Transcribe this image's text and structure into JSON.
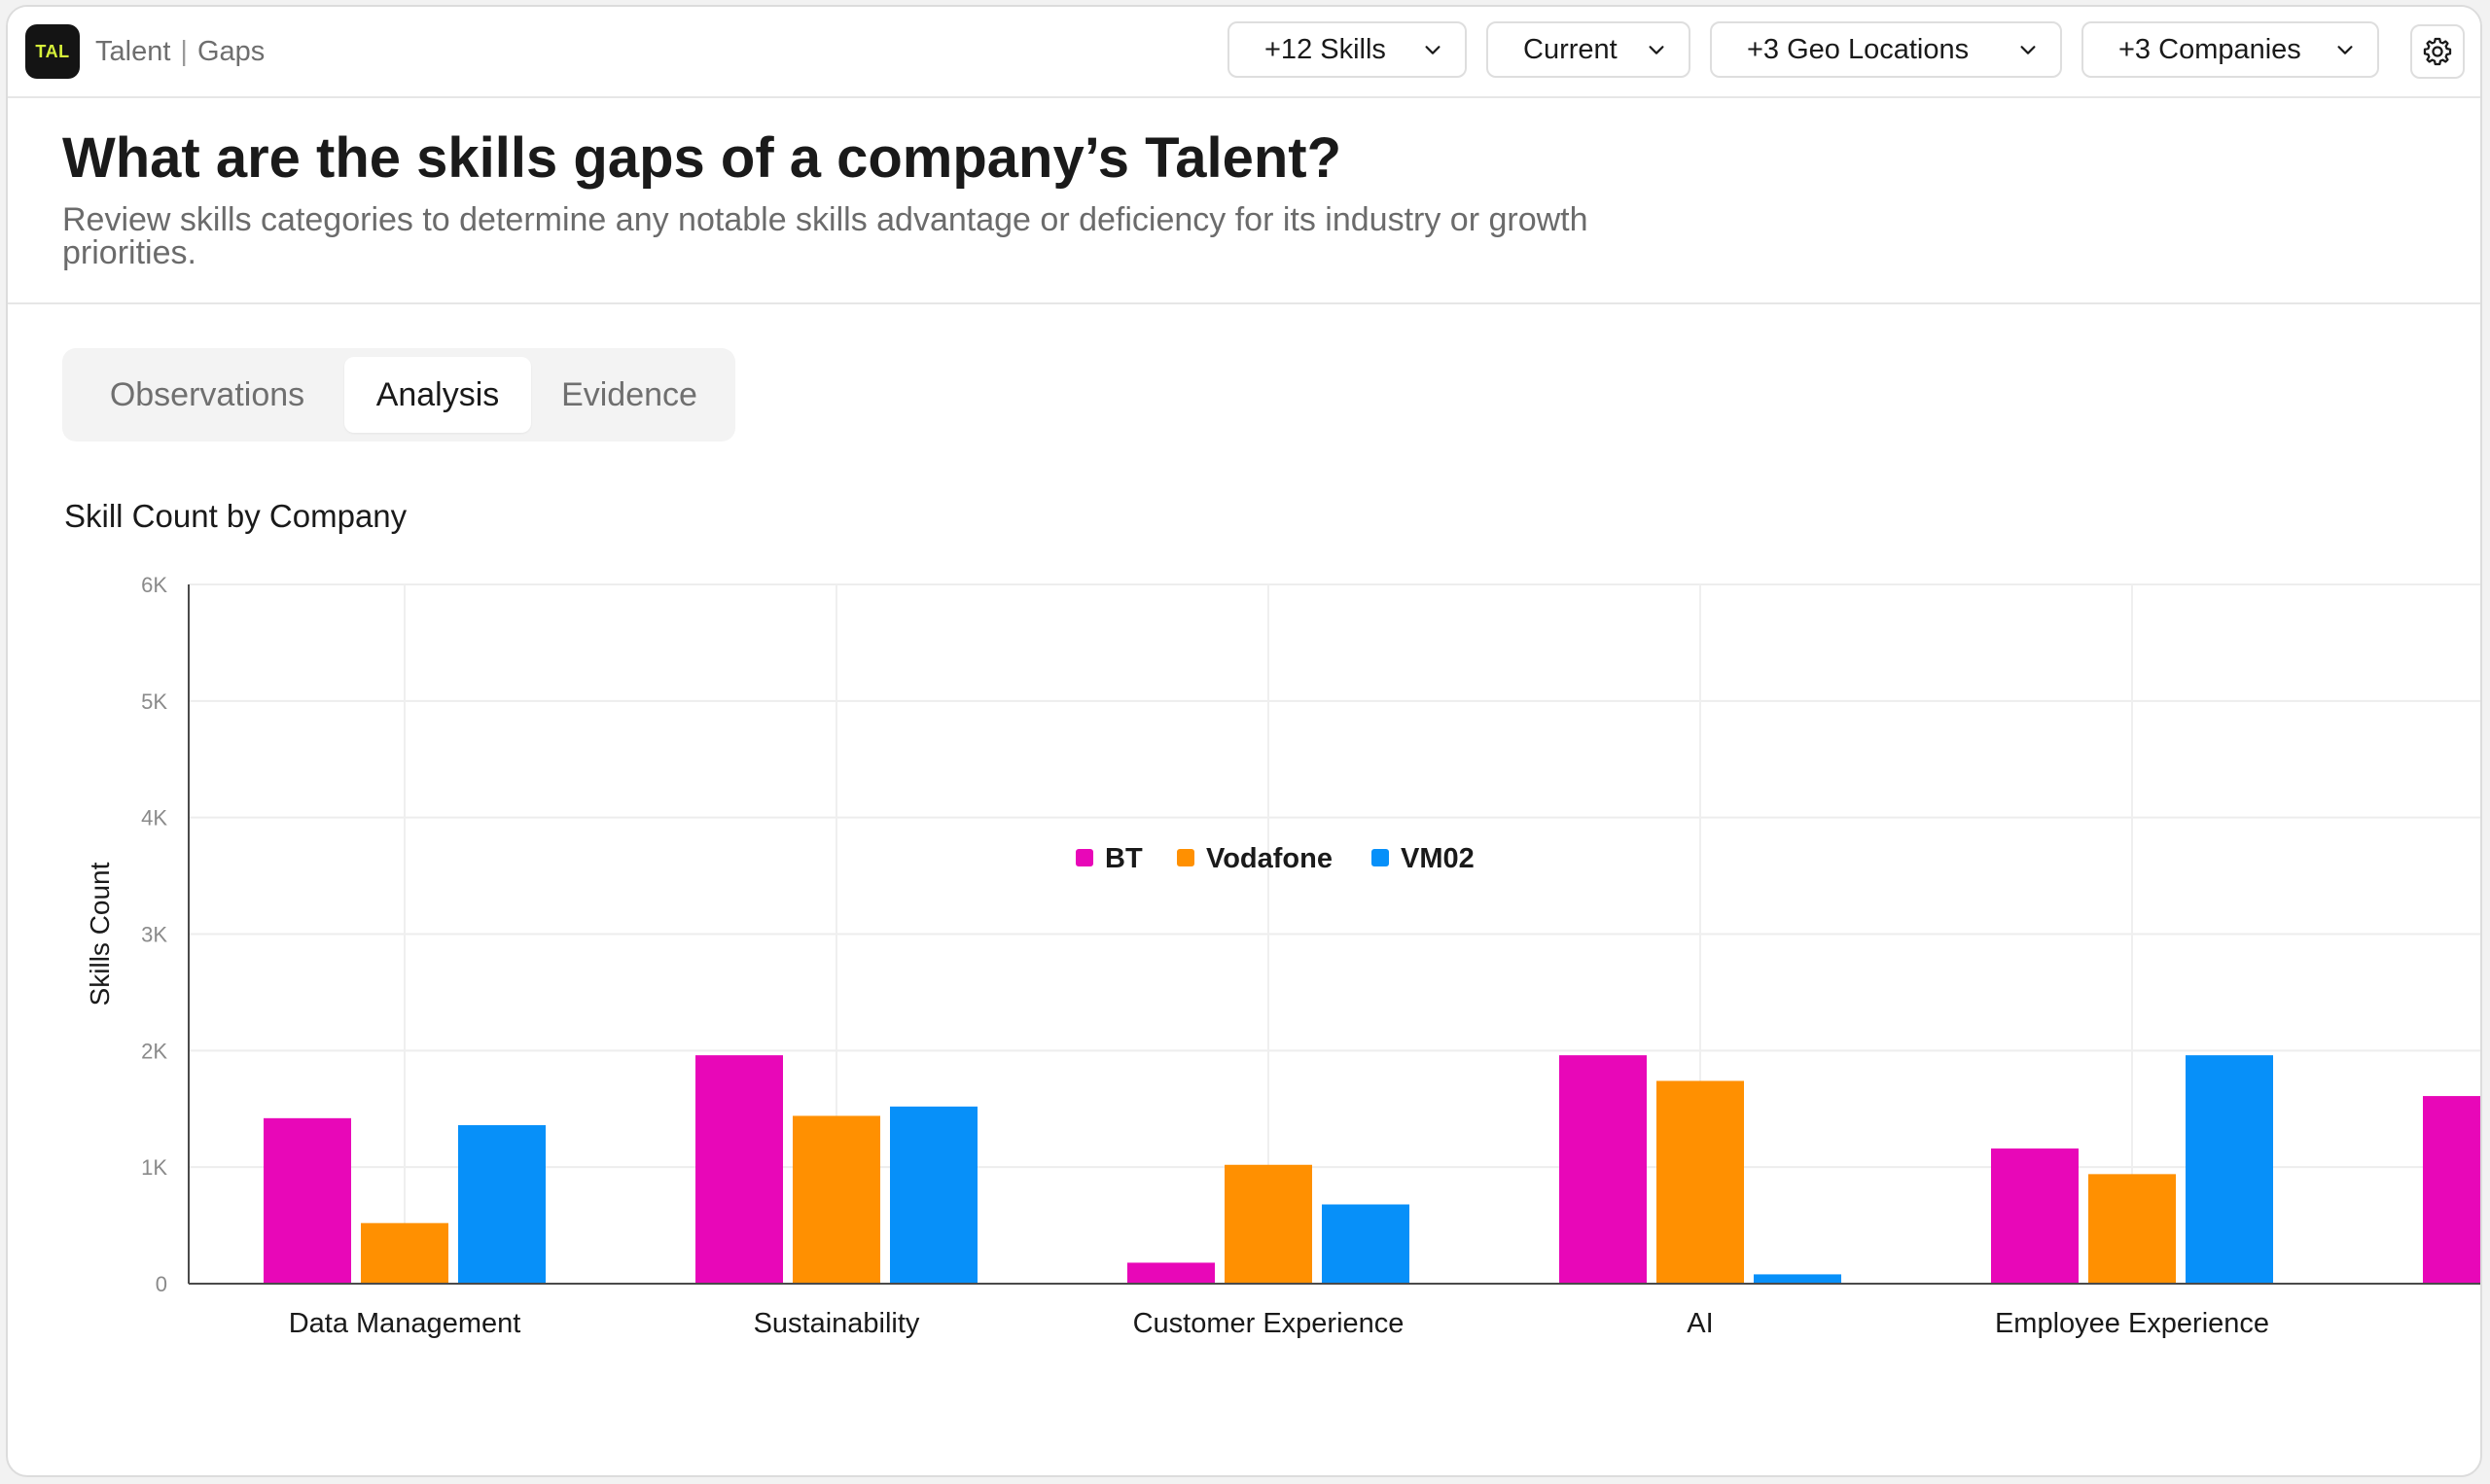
{
  "app": {
    "logo_text": "TAL",
    "breadcrumb": {
      "section": "Talent",
      "separator": "|",
      "page": "Gaps"
    }
  },
  "filters": [
    {
      "label": "+12 Skills"
    },
    {
      "label": "Current"
    },
    {
      "label": "+3 Geo Locations"
    },
    {
      "label": "+3 Companies"
    }
  ],
  "icons": {
    "settings": "gear-icon",
    "dropdown": "chevron-down-icon"
  },
  "header": {
    "title": "What are the skills gaps of a company’s Talent?",
    "subtitle": "Review skills categories to determine any notable skills advantage or deficiency for its industry or growth priorities."
  },
  "tabs": [
    {
      "label": "Observations",
      "active": false
    },
    {
      "label": "Analysis",
      "active": true
    },
    {
      "label": "Evidence",
      "active": false
    }
  ],
  "chart_data": {
    "type": "bar",
    "title": "Skill Count by Company",
    "xlabel": "",
    "ylabel": "Skills Count",
    "ylim": [
      0,
      6000
    ],
    "yticks": [
      0,
      1000,
      2000,
      3000,
      4000,
      5000,
      6000
    ],
    "ytick_labels": [
      "0",
      "1K",
      "2K",
      "3K",
      "4K",
      "5K",
      "6K"
    ],
    "categories": [
      "Data Management",
      "Sustainability",
      "Customer Experience",
      "AI",
      "Employee Experience",
      ""
    ],
    "series": [
      {
        "name": "BT",
        "color": "#e807b8",
        "values": [
          1420,
          1960,
          180,
          1960,
          1160,
          1610
        ]
      },
      {
        "name": "Vodafone",
        "color": "#ff9001",
        "values": [
          520,
          1440,
          1020,
          1740,
          940,
          null
        ]
      },
      {
        "name": "VM02",
        "color": "#0790f9",
        "values": [
          1360,
          1520,
          680,
          80,
          1960,
          null
        ]
      }
    ],
    "grid": true,
    "legend": "bottom-center"
  }
}
